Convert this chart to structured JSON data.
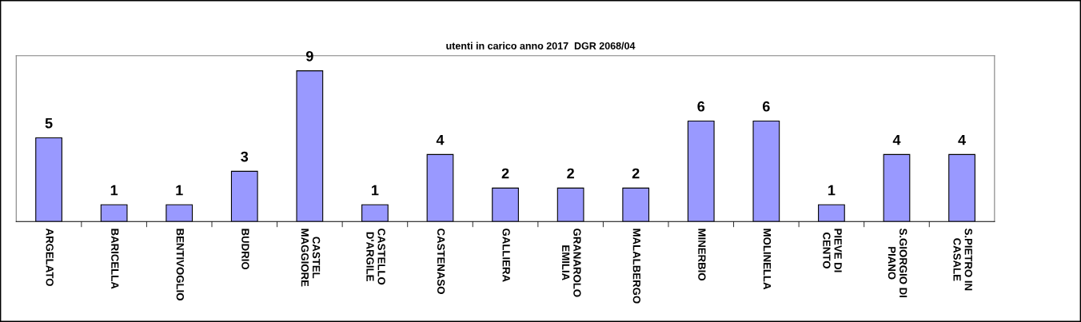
{
  "chart_data": {
    "type": "bar",
    "title": "utenti in carico anno 2017  DGR 2068/04",
    "categories": [
      "ARGELATO",
      "BARICELLA",
      "BENTIVOGLIO",
      "BUDRIO",
      "CASTEL\nMAGGIORE",
      "CASTELLO\nD'ARGILE",
      "CASTENASO",
      "GALLIERA",
      "GRANAROLO\nEMILIA",
      "MALALBERGO",
      "MINERBIO",
      "MOLINELLA",
      "PIEVE DI\nCENTO",
      "S.GIORGIO DI\nPIANO",
      "S.PIETRO IN\nCASALE"
    ],
    "values": [
      5,
      1,
      1,
      3,
      9,
      1,
      4,
      2,
      2,
      2,
      6,
      6,
      1,
      4,
      4
    ],
    "color": "#9999ff",
    "data_labels": true,
    "grid": false,
    "legend": false
  }
}
